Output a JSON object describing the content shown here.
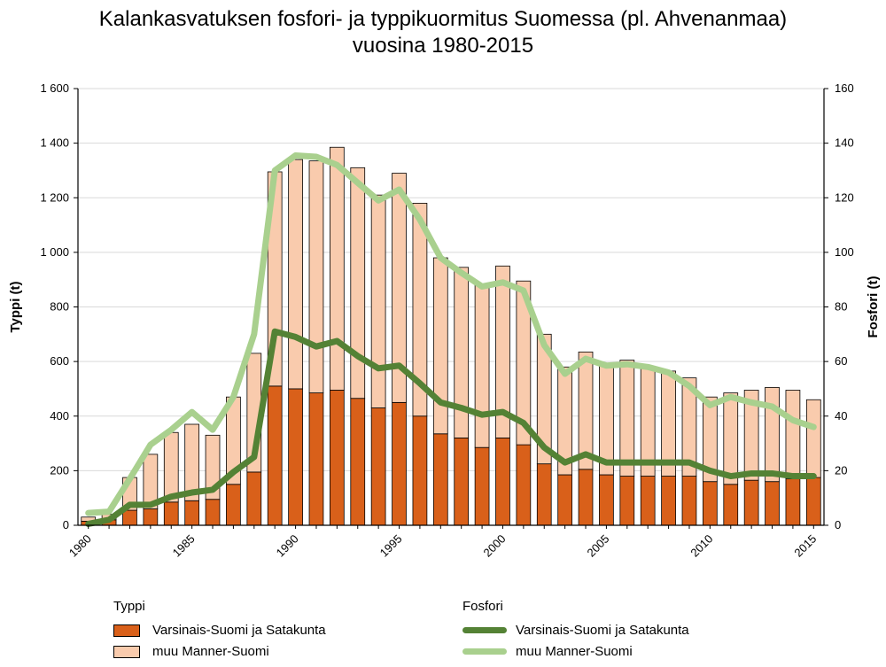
{
  "chart_data": {
    "type": "bar+line",
    "title_line1": "Kalankasvatuksen fosfori- ja typpikuormitus Suomessa (pl. Ahvenanmaa)",
    "title_line2": "vuosina 1980-2015",
    "y_left_label": "Typpi (t)",
    "y_right_label": "Fosfori (t)",
    "y_left_lim": [
      0,
      1600
    ],
    "y_right_lim": [
      0,
      160
    ],
    "y_left_ticks": [
      "0",
      "200",
      "400",
      "600",
      "800",
      "1 000",
      "1 200",
      "1 400",
      "1 600"
    ],
    "y_right_ticks": [
      "0",
      "20",
      "40",
      "60",
      "80",
      "100",
      "120",
      "140",
      "160"
    ],
    "x_tick_labels": [
      "1980",
      "1985",
      "1990",
      "1995",
      "2000",
      "2005",
      "2010",
      "2015"
    ],
    "years": [
      1980,
      1981,
      1982,
      1983,
      1984,
      1985,
      1986,
      1987,
      1988,
      1989,
      1990,
      1991,
      1992,
      1993,
      1994,
      1995,
      1996,
      1997,
      1998,
      1999,
      2000,
      2001,
      2002,
      2003,
      2004,
      2005,
      2006,
      2007,
      2008,
      2009,
      2010,
      2011,
      2012,
      2013,
      2014,
      2015
    ],
    "bar_series": [
      {
        "name": "Varsinais-Suomi ja Satakunta",
        "group": "Typpi",
        "color": "#D9601A",
        "values": [
          15,
          20,
          55,
          60,
          85,
          90,
          95,
          150,
          195,
          510,
          500,
          485,
          495,
          465,
          430,
          450,
          400,
          335,
          320,
          285,
          320,
          295,
          225,
          185,
          205,
          185,
          180,
          180,
          180,
          180,
          160,
          150,
          165,
          160,
          170,
          175
        ]
      },
      {
        "name": "muu Manner-Suomi",
        "group": "Typpi",
        "color": "#F9CBAD",
        "values": [
          15,
          20,
          120,
          200,
          255,
          280,
          235,
          320,
          435,
          785,
          840,
          850,
          890,
          845,
          780,
          840,
          780,
          645,
          625,
          595,
          630,
          600,
          475,
          395,
          430,
          405,
          425,
          400,
          385,
          360,
          310,
          335,
          330,
          345,
          325,
          285
        ]
      }
    ],
    "line_series": [
      {
        "name": "Varsinais-Suomi ja Satakunta",
        "group": "Fosfori",
        "color": "#548235",
        "values": [
          0.5,
          2,
          7.5,
          7.5,
          10.5,
          12,
          13,
          19.5,
          25,
          71,
          69,
          65.5,
          67.5,
          62,
          57.5,
          58.5,
          52,
          45,
          43,
          40.5,
          41.5,
          37.5,
          28.5,
          23,
          26,
          23,
          23,
          23,
          23,
          23,
          20,
          18,
          19,
          19,
          18,
          18
        ]
      },
      {
        "name": "muu Manner-Suomi",
        "group": "Fosfori",
        "color": "#A9D08E",
        "values": [
          4.5,
          5,
          17,
          29.5,
          35,
          41.5,
          35,
          47,
          70,
          130,
          135.5,
          135,
          132,
          125.5,
          119,
          123,
          112,
          98,
          92.5,
          87.5,
          89,
          86,
          66,
          55.5,
          61,
          58.5,
          59,
          58,
          56,
          51,
          44,
          47,
          45,
          43.5,
          38.5,
          36
        ]
      }
    ],
    "legend": {
      "bars_heading": "Typpi",
      "lines_heading": "Fosfori",
      "items": {
        "bar1": "Varsinais-Suomi ja Satakunta",
        "bar2": "muu Manner-Suomi",
        "line1": "Varsinais-Suomi ja Satakunta",
        "line2": "muu Manner-Suomi"
      }
    }
  }
}
